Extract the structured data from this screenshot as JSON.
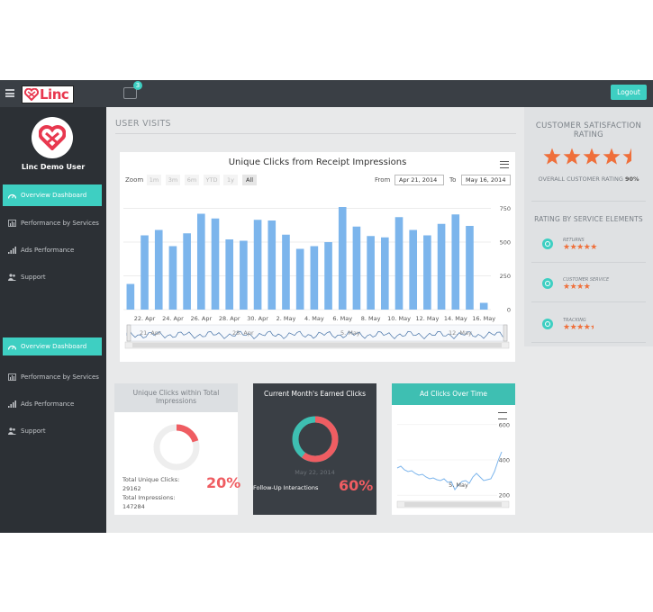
{
  "topbar": {
    "logo_text": "Linc",
    "mail_count": "3",
    "logout_label": "Logout"
  },
  "sidebar": {
    "user_name": "Linc Demo User",
    "groups": [
      {
        "items": [
          {
            "label": "Overview Dashboard",
            "icon": "dashboard-icon",
            "active": true
          },
          {
            "label": "Performance by Services",
            "icon": "bar-chart-icon",
            "active": false
          },
          {
            "label": "Ads Performance",
            "icon": "signal-icon",
            "active": false
          },
          {
            "label": "Support",
            "icon": "users-icon",
            "active": false
          }
        ]
      },
      {
        "items": [
          {
            "label": "Overview Dashboard",
            "icon": "dashboard-icon",
            "active": true
          },
          {
            "label": "Performance by Services",
            "icon": "bar-chart-icon",
            "active": false
          },
          {
            "label": "Ads Performance",
            "icon": "signal-icon",
            "active": false
          },
          {
            "label": "Support",
            "icon": "users-icon",
            "active": false
          }
        ]
      }
    ]
  },
  "main": {
    "section_title": "USER VISITS",
    "chart": {
      "title": "Unique Clicks from Receipt Impressions",
      "zoom_label": "Zoom",
      "zoom_buttons": [
        "1m",
        "3m",
        "6m",
        "YTD",
        "1y",
        "All"
      ],
      "zoom_selected": "All",
      "from_label": "From",
      "from_value": "Apr 21, 2014",
      "to_label": "To",
      "to_value": "May 16, 2014"
    }
  },
  "chart_data": [
    {
      "type": "bar",
      "title": "Unique Clicks from Receipt Impressions",
      "x_tick_labels": [
        "22. Apr",
        "24. Apr",
        "26. Apr",
        "28. Apr",
        "30. Apr",
        "2. May",
        "4. May",
        "6. May",
        "8. May",
        "10. May",
        "12. May",
        "14. May",
        "16. May"
      ],
      "y_tick_labels": [
        "0",
        "250",
        "500",
        "750"
      ],
      "ylim": [
        0,
        800
      ],
      "categories": [
        "21 Apr",
        "22 Apr",
        "23 Apr",
        "24 Apr",
        "25 Apr",
        "26 Apr",
        "27 Apr",
        "28 Apr",
        "29 Apr",
        "30 Apr",
        "1 May",
        "2 May",
        "3 May",
        "4 May",
        "5 May",
        "6 May",
        "7 May",
        "8 May",
        "9 May",
        "10 May",
        "11 May",
        "12 May",
        "13 May",
        "14 May",
        "15 May",
        "16 May"
      ],
      "values": [
        190,
        550,
        590,
        470,
        565,
        710,
        675,
        520,
        510,
        665,
        660,
        555,
        450,
        470,
        500,
        760,
        615,
        545,
        535,
        685,
        590,
        550,
        635,
        705,
        620,
        50
      ],
      "navigator_labels": [
        "21. Apr",
        "28. Apr",
        "5. May",
        "12. May"
      ],
      "grid": true,
      "legend": "none"
    },
    {
      "type": "pie",
      "title": "Unique Clicks within Total Impressions",
      "values": [
        20,
        80
      ]
    },
    {
      "type": "pie",
      "title": "Current Month's Earned Clicks",
      "values": [
        60,
        40
      ]
    },
    {
      "type": "line",
      "title": "Ad Clicks Over Time",
      "y_tick_labels": [
        "200",
        "400",
        "600"
      ],
      "x_tick_labels": [
        "5. May"
      ],
      "ylim": [
        150,
        650
      ]
    }
  ],
  "satisfaction": {
    "title": "CUSTOMER SATISFACTION RATING",
    "rating": 4.5,
    "overall_label": "OVERALL CUSTOMER RATING",
    "overall_value": "90%",
    "subtitle": "RATING BY SERVICE ELEMENTS",
    "services": [
      {
        "label": "RETURNS",
        "rating": 5,
        "icon": "clock-icon"
      },
      {
        "label": "CUSTOMER SERVICE",
        "rating": 4,
        "icon": "clock-icon"
      },
      {
        "label": "TRACKING",
        "rating": 4.5,
        "icon": "clock-icon"
      }
    ]
  },
  "cards": {
    "unique_clicks": {
      "title": "Unique Clicks within Total Impressions",
      "total_unique_label": "Total Unique Clicks:",
      "total_unique_value": "29162",
      "total_impressions_label": "Total Impressions:",
      "total_impressions_value": "147284",
      "percent": "20%"
    },
    "earned": {
      "title": "Current Month's Earned Clicks",
      "date": "May 22, 2014",
      "followup_label": "Follow-Up Interactions",
      "percent": "60%"
    },
    "ad_clicks": {
      "title": "Ad Clicks Over Time"
    }
  },
  "colors": {
    "accent": "#3ecfc2",
    "bar": "#7cb5ec",
    "sidebar": "#2c3035",
    "topbar": "#3a3f45",
    "highlight": "#ef5d62",
    "star": "#ef6f3a"
  }
}
